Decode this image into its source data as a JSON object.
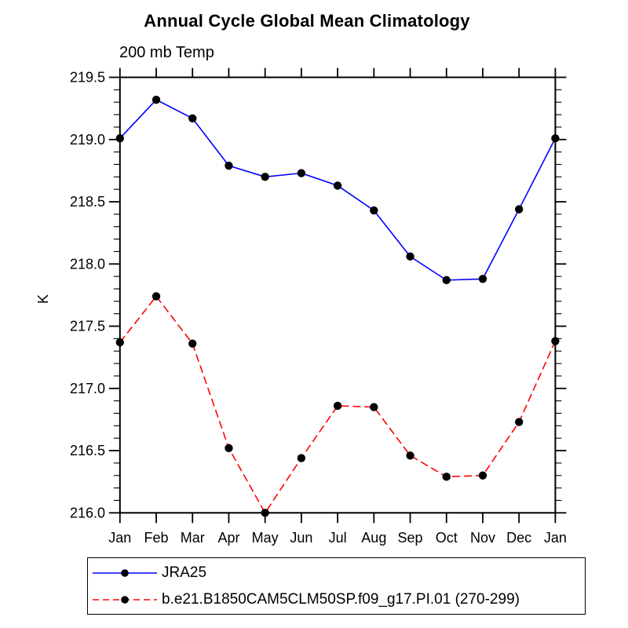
{
  "header": {
    "title": "Annual Cycle Global Mean Climatology",
    "subtitle": "200 mb Temp"
  },
  "chart_data": {
    "type": "line",
    "title": "Annual Cycle Global Mean Climatology",
    "subtitle": "200 mb Temp",
    "xlabel": "",
    "ylabel": "K",
    "categories": [
      "Jan",
      "Feb",
      "Mar",
      "Apr",
      "May",
      "Jun",
      "Jul",
      "Aug",
      "Sep",
      "Oct",
      "Nov",
      "Dec",
      "Jan"
    ],
    "ylim": [
      216.0,
      219.5
    ],
    "ytick_step": 0.5,
    "ytick_minor_step": 0.1,
    "ytick_labels": [
      "216.0",
      "216.5",
      "217.0",
      "217.5",
      "218.0",
      "218.5",
      "219.0",
      "219.5"
    ],
    "grid": false,
    "legend_position": "bottom-left-box",
    "axis_color": "#000000",
    "marker": "filled-circle",
    "marker_color": "#000000",
    "series": [
      {
        "name": "JRA25",
        "color": "#0000ff",
        "line_style": "solid",
        "values": [
          219.01,
          219.32,
          219.17,
          218.79,
          218.7,
          218.73,
          218.63,
          218.43,
          218.06,
          217.87,
          217.88,
          218.44,
          219.01
        ]
      },
      {
        "name": "b.e21.B1850CAM5CLM50SP.f09_g17.PI.01 (270-299)",
        "color": "#ff0000",
        "line_style": "dashed",
        "values": [
          217.37,
          217.74,
          217.36,
          216.52,
          216.0,
          216.44,
          216.86,
          216.85,
          216.46,
          216.29,
          216.3,
          216.73,
          217.38
        ]
      }
    ]
  },
  "legend": {
    "items": [
      {
        "label": "JRA25"
      },
      {
        "label": "b.e21.B1850CAM5CLM50SP.f09_g17.PI.01 (270-299)"
      }
    ]
  }
}
